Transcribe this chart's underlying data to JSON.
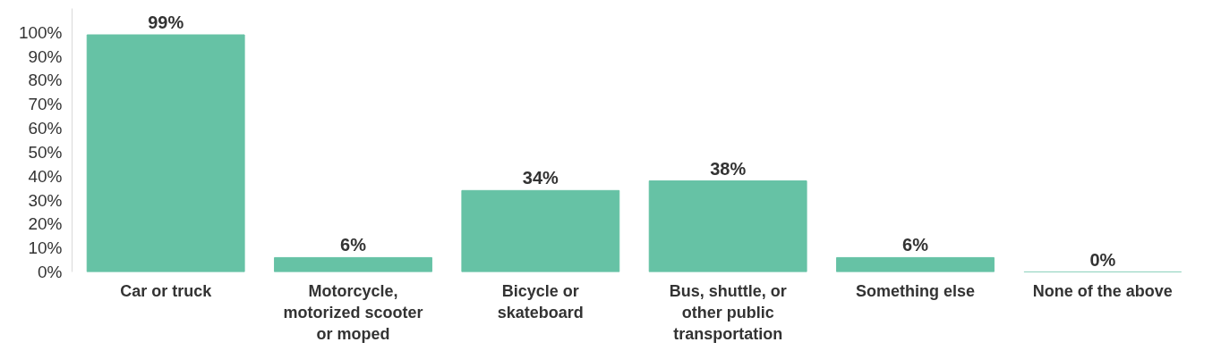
{
  "chart_data": {
    "type": "bar",
    "categories": [
      "Car or truck",
      "Motorcycle, motorized scooter or moped",
      "Bicycle or skateboard",
      "Bus, shuttle, or other public transportation",
      "Something else",
      "None of the above"
    ],
    "values": [
      99,
      6,
      34,
      38,
      6,
      0
    ],
    "value_labels": [
      "99%",
      "6%",
      "34%",
      "38%",
      "6%",
      "0%"
    ],
    "color": "#66c2a5",
    "ylim": [
      0,
      110
    ],
    "yticks": [
      {
        "value": 0,
        "label": "0%"
      },
      {
        "value": 10,
        "label": "10%"
      },
      {
        "value": 20,
        "label": "20%"
      },
      {
        "value": 30,
        "label": "30%"
      },
      {
        "value": 40,
        "label": "40%"
      },
      {
        "value": 50,
        "label": "50%"
      },
      {
        "value": 60,
        "label": "60%"
      },
      {
        "value": 70,
        "label": "70%"
      },
      {
        "value": 80,
        "label": "80%"
      },
      {
        "value": 90,
        "label": "90%"
      },
      {
        "value": 100,
        "label": "100%"
      }
    ],
    "grid": false
  }
}
